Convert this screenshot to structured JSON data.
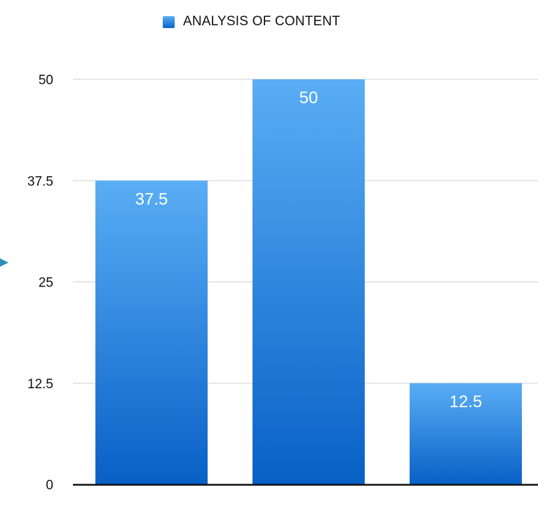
{
  "chart_data": {
    "type": "bar",
    "categories": [
      "",
      "",
      ""
    ],
    "series": [
      {
        "name": "ANALYSIS OF CONTENT",
        "values": [
          37.5,
          50,
          12.5
        ],
        "color": "#2e8ae6"
      }
    ],
    "data_labels": [
      "37.5",
      "50",
      "12.5"
    ],
    "y_ticks": [
      "0",
      "12.5",
      "25",
      "37.5",
      "50"
    ],
    "ylim": [
      0,
      50
    ],
    "grid": true,
    "legend_position": "top-center",
    "title": "",
    "xlabel": "",
    "ylabel": ""
  }
}
